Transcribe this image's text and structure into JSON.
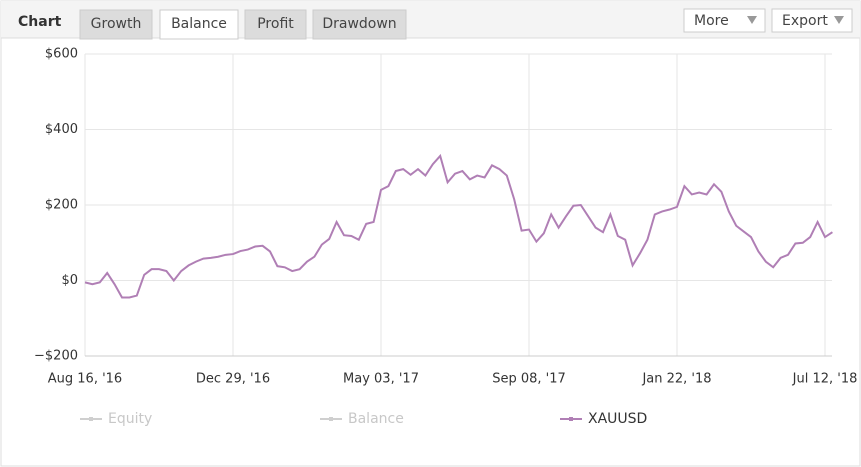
{
  "ui": {
    "heading": "Chart",
    "tabs": [
      "Growth",
      "Balance",
      "Profit",
      "Drawdown"
    ],
    "active_tab": 1,
    "buttons": [
      "More",
      "Export"
    ]
  },
  "chart_data": {
    "type": "line",
    "categories": [
      "Aug 16, '16",
      null,
      null,
      null,
      null,
      null,
      null,
      null,
      null,
      null,
      null,
      null,
      null,
      null,
      null,
      null,
      null,
      null,
      null,
      null,
      "Dec 29, '16",
      null,
      null,
      null,
      null,
      null,
      null,
      null,
      null,
      null,
      null,
      null,
      null,
      null,
      null,
      null,
      null,
      null,
      null,
      null,
      "May 03, '17",
      null,
      null,
      null,
      null,
      null,
      null,
      null,
      null,
      null,
      null,
      null,
      null,
      null,
      null,
      null,
      null,
      null,
      null,
      null,
      "Sep 08, '17",
      null,
      null,
      null,
      null,
      null,
      null,
      null,
      null,
      null,
      null,
      null,
      null,
      null,
      null,
      null,
      null,
      null,
      null,
      null,
      "Jan 22, '18",
      null,
      null,
      null,
      null,
      null,
      null,
      null,
      null,
      null,
      null,
      null,
      null,
      null,
      null,
      null,
      null,
      null,
      null,
      null,
      "Jul 12, '18",
      null
    ],
    "series": [
      {
        "name": "XAUUSD",
        "color": "#b07fb5",
        "values": [
          -5,
          -10,
          -5,
          20,
          -10,
          -45,
          -45,
          -40,
          15,
          30,
          30,
          25,
          0,
          25,
          40,
          50,
          58,
          60,
          63,
          68,
          70,
          78,
          82,
          90,
          92,
          77,
          38,
          35,
          25,
          30,
          50,
          63,
          95,
          110,
          155,
          120,
          118,
          108,
          150,
          155,
          240,
          250,
          290,
          295,
          280,
          295,
          278,
          308,
          330,
          260,
          283,
          290,
          268,
          278,
          273,
          305,
          295,
          278,
          215,
          132,
          135,
          103,
          125,
          175,
          140,
          170,
          198,
          200,
          170,
          140,
          128,
          175,
          118,
          108,
          40,
          72,
          108,
          175,
          183,
          188,
          195,
          250,
          228,
          233,
          228,
          255,
          235,
          183,
          145,
          130,
          115,
          77,
          50,
          35,
          60,
          68,
          98,
          100,
          115,
          155,
          115,
          128
        ]
      }
    ],
    "hidden_series": [
      {
        "name": "Equity",
        "color": "#cfcfcf"
      },
      {
        "name": "Balance",
        "color": "#cfcfcf"
      }
    ],
    "ylim": [
      -200,
      600
    ],
    "yticks": [
      {
        "value": -200,
        "label": "−$200"
      },
      {
        "value": 0,
        "label": "$0"
      },
      {
        "value": 200,
        "label": "$200"
      },
      {
        "value": 400,
        "label": "$400"
      },
      {
        "value": 600,
        "label": "$600"
      }
    ],
    "grid": true
  }
}
